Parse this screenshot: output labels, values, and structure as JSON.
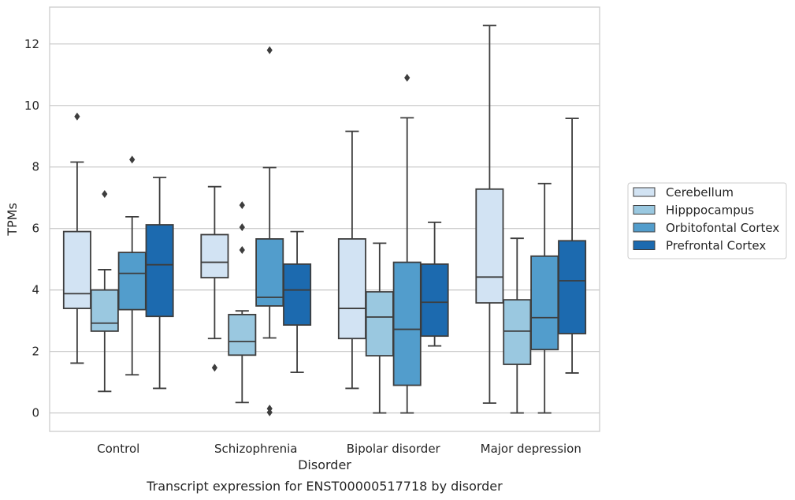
{
  "chart_data": {
    "type": "box",
    "xlabel": "Disorder",
    "ylabel": "TPMs",
    "caption": "Transcript expression for ENST00000517718 by disorder",
    "ylim": [
      -0.6,
      13.2
    ],
    "yticks": [
      0,
      2,
      4,
      6,
      8,
      10,
      12
    ],
    "grid": true,
    "legend_position": "right",
    "categories": [
      "Control",
      "Schizophrenia",
      "Bipolar disorder",
      "Major depression"
    ],
    "series": [
      {
        "name": "Cerebellum",
        "color": "#d2e3f3",
        "boxes": [
          {
            "whisker_low": 1.62,
            "q1": 3.4,
            "median": 3.88,
            "q3": 5.9,
            "whisker_high": 8.16,
            "outliers": [
              9.64
            ]
          },
          {
            "whisker_low": 2.42,
            "q1": 4.4,
            "median": 4.9,
            "q3": 5.8,
            "whisker_high": 7.36,
            "outliers": [
              1.47
            ]
          },
          {
            "whisker_low": 0.8,
            "q1": 2.42,
            "median": 3.4,
            "q3": 5.66,
            "whisker_high": 9.16,
            "outliers": []
          },
          {
            "whisker_low": 0.32,
            "q1": 3.58,
            "median": 4.42,
            "q3": 7.28,
            "whisker_high": 12.6,
            "outliers": []
          }
        ]
      },
      {
        "name": "Hipppocampus",
        "color": "#9ac8e0",
        "boxes": [
          {
            "whisker_low": 0.7,
            "q1": 2.66,
            "median": 2.92,
            "q3": 4.0,
            "whisker_high": 4.66,
            "outliers": [
              7.12
            ]
          },
          {
            "whisker_low": 0.34,
            "q1": 1.88,
            "median": 2.32,
            "q3": 3.2,
            "whisker_high": 3.32,
            "outliers": [
              5.3,
              6.04,
              6.76
            ]
          },
          {
            "whisker_low": 0.0,
            "q1": 1.86,
            "median": 3.12,
            "q3": 3.94,
            "whisker_high": 5.52,
            "outliers": []
          },
          {
            "whisker_low": 0.0,
            "q1": 1.58,
            "median": 2.66,
            "q3": 3.68,
            "whisker_high": 5.68,
            "outliers": []
          }
        ]
      },
      {
        "name": "Orbitofontal Cortex",
        "color": "#529dcc",
        "boxes": [
          {
            "whisker_low": 1.24,
            "q1": 3.36,
            "median": 4.54,
            "q3": 5.22,
            "whisker_high": 6.38,
            "outliers": [
              8.24
            ]
          },
          {
            "whisker_low": 2.44,
            "q1": 3.48,
            "median": 3.76,
            "q3": 5.66,
            "whisker_high": 7.98,
            "outliers": [
              11.8,
              0.14,
              0.02
            ]
          },
          {
            "whisker_low": 0.0,
            "q1": 0.9,
            "median": 2.72,
            "q3": 4.9,
            "whisker_high": 9.6,
            "outliers": [
              10.9
            ]
          },
          {
            "whisker_low": 0.0,
            "q1": 2.06,
            "median": 3.1,
            "q3": 5.1,
            "whisker_high": 7.46,
            "outliers": []
          }
        ]
      },
      {
        "name": "Prefrontal Cortex",
        "color": "#1c6aaf",
        "boxes": [
          {
            "whisker_low": 0.8,
            "q1": 3.14,
            "median": 4.82,
            "q3": 6.12,
            "whisker_high": 7.66,
            "outliers": []
          },
          {
            "whisker_low": 1.32,
            "q1": 2.86,
            "median": 4.0,
            "q3": 4.84,
            "whisker_high": 5.9,
            "outliers": []
          },
          {
            "whisker_low": 2.18,
            "q1": 2.5,
            "median": 3.6,
            "q3": 4.84,
            "whisker_high": 6.2,
            "outliers": []
          },
          {
            "whisker_low": 1.3,
            "q1": 2.58,
            "median": 4.3,
            "q3": 5.6,
            "whisker_high": 9.58,
            "outliers": []
          }
        ]
      }
    ]
  }
}
